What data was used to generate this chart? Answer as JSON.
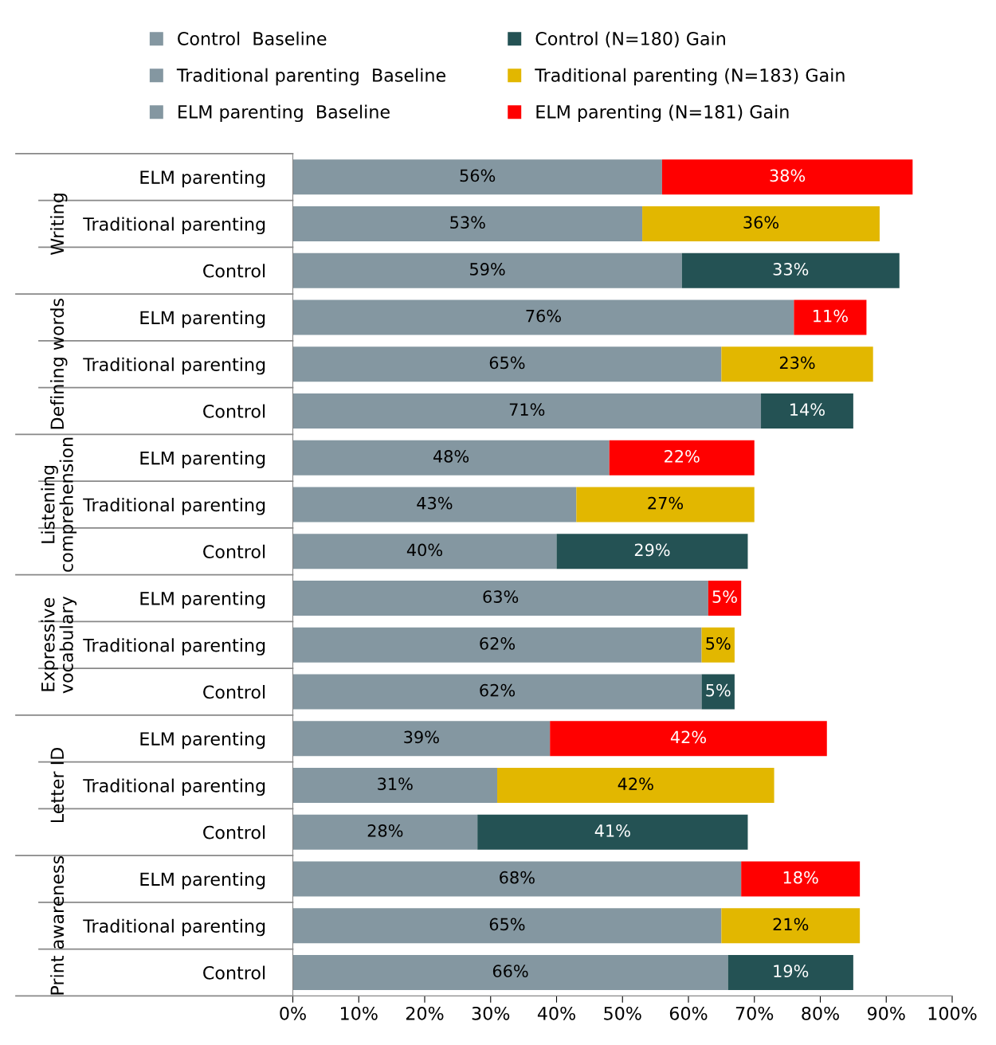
{
  "chart_data": {
    "type": "bar",
    "orientation": "horizontal",
    "stacked": true,
    "categories": [
      "ELM parenting",
      "Traditional parenting",
      "Control",
      "ELM parenting",
      "Traditional parenting",
      "Control",
      "ELM parenting",
      "Traditional parenting",
      "Control",
      "ELM parenting",
      "Traditional parenting",
      "Control",
      "ELM parenting",
      "Traditional parenting",
      "Control",
      "ELM parenting",
      "Traditional parenting",
      "Control"
    ],
    "annotations": [
      "Writing",
      "Defining words",
      "Listening comprehension",
      "Expressive vocabulary",
      "Letter ID",
      "Print awareness"
    ],
    "series": [
      {
        "name": "Control  Baseline",
        "color": "#8497a1",
        "values": [
          null,
          null,
          59,
          null,
          null,
          71,
          null,
          null,
          40,
          null,
          null,
          62,
          null,
          null,
          28,
          null,
          null,
          66
        ],
        "value_labels": [
          null,
          null,
          "59%",
          null,
          null,
          "71%",
          null,
          null,
          "40%",
          null,
          null,
          "62%",
          null,
          null,
          "28%",
          null,
          null,
          "66%"
        ]
      },
      {
        "name": "Traditional parenting  Baseline",
        "color": "#8497a1",
        "values": [
          null,
          53,
          null,
          null,
          65,
          null,
          null,
          43,
          null,
          null,
          62,
          null,
          null,
          31,
          null,
          null,
          65,
          null
        ],
        "value_labels": [
          null,
          "53%",
          null,
          null,
          "65%",
          null,
          null,
          "43%",
          null,
          null,
          "62%",
          null,
          null,
          "31%",
          null,
          null,
          "65%",
          null
        ]
      },
      {
        "name": "ELM parenting  Baseline",
        "color": "#8497a1",
        "values": [
          56,
          null,
          null,
          76,
          null,
          null,
          48,
          null,
          null,
          63,
          null,
          null,
          39,
          null,
          null,
          68,
          null,
          null
        ],
        "value_labels": [
          "56%",
          null,
          null,
          "76%",
          null,
          null,
          "48%",
          null,
          null,
          "63%",
          null,
          null,
          "39%",
          null,
          null,
          "68%",
          null,
          null
        ]
      },
      {
        "name": "Control (N=180) Gain",
        "color": "#245254",
        "values": [
          null,
          null,
          33,
          null,
          null,
          14,
          null,
          null,
          29,
          null,
          null,
          5,
          null,
          null,
          41,
          null,
          null,
          19
        ],
        "value_labels": [
          null,
          null,
          "33%",
          null,
          null,
          "14%",
          null,
          null,
          "29%",
          null,
          null,
          "5%",
          null,
          null,
          "41%",
          null,
          null,
          "19%"
        ]
      },
      {
        "name": "Traditional parenting (N=183) Gain",
        "color": "#e2b700",
        "values": [
          null,
          36,
          null,
          null,
          23,
          null,
          null,
          27,
          null,
          null,
          5,
          null,
          null,
          42,
          null,
          null,
          21,
          null
        ],
        "value_labels": [
          null,
          "36%",
          null,
          null,
          "23%",
          null,
          null,
          "27%",
          null,
          null,
          "5%",
          null,
          null,
          "42%",
          null,
          null,
          "21%",
          null
        ]
      },
      {
        "name": "ELM parenting (N=181) Gain",
        "color": "#ff0000",
        "values": [
          38,
          null,
          null,
          11,
          null,
          null,
          22,
          null,
          null,
          5,
          null,
          null,
          42,
          null,
          null,
          18,
          null,
          null
        ],
        "value_labels": [
          "38%",
          null,
          null,
          "11%",
          null,
          null,
          "22%",
          null,
          null,
          "5%",
          null,
          null,
          "42%",
          null,
          null,
          "18%",
          null,
          null
        ]
      }
    ],
    "xlim": [
      0,
      100
    ],
    "xticks": [
      {
        "value": 0,
        "label": "0%"
      },
      {
        "value": 10,
        "label": "10%"
      },
      {
        "value": 20,
        "label": "20%"
      },
      {
        "value": 30,
        "label": "30%"
      },
      {
        "value": 40,
        "label": "40%"
      },
      {
        "value": 50,
        "label": "50%"
      },
      {
        "value": 60,
        "label": "60%"
      },
      {
        "value": 70,
        "label": "70%"
      },
      {
        "value": 80,
        "label": "80%"
      },
      {
        "value": 90,
        "label": "90%"
      },
      {
        "value": 100,
        "label": "100%"
      }
    ],
    "grid": false,
    "legend": "top"
  }
}
